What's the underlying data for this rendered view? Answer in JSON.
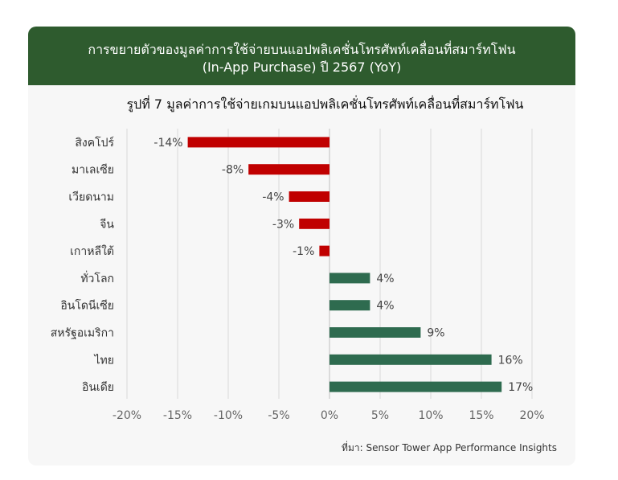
{
  "banner": {
    "line1": "การขยายตัวของมูลค่าการใช้จ่ายบนแอปพลิเคชั่นโทรศัพท์เคลื่อนที่สมาร์ทโฟน",
    "line2": "(In-App Purchase) ปี 2567 (YoY)",
    "color": "#2e5b2e"
  },
  "source": "ที่มา: Sensor Tower App Performance Insights",
  "chart_data": {
    "type": "bar",
    "orientation": "horizontal",
    "title": "รูปที่ 7 มูลค่าการใช้จ่ายเกมบนแอปพลิเคชั่นโทรศัพท์เคลื่อนที่สมาร์ทโฟน",
    "categories": [
      "สิงคโปร์",
      "มาเลเซีย",
      "เวียดนาม",
      "จีน",
      "เกาหลีใต้",
      "ทั่วโลก",
      "อินโดนีเซีย",
      "สหรัฐอเมริกา",
      "ไทย",
      "อินเดีย"
    ],
    "values": [
      -14,
      -8,
      -4,
      -3,
      -1,
      4,
      4,
      9,
      16,
      17
    ],
    "value_labels": [
      "-14%",
      "-8%",
      "-4%",
      "-3%",
      "-1%",
      "4%",
      "4%",
      "9%",
      "16%",
      "17%"
    ],
    "xlim": [
      -20,
      20
    ],
    "xticks": [
      -20,
      -15,
      -10,
      -5,
      0,
      5,
      10,
      15,
      20
    ],
    "xtick_labels": [
      "-20%",
      "-15%",
      "-10%",
      "-5%",
      "0%",
      "5%",
      "10%",
      "15%",
      "20%"
    ],
    "grid": true,
    "colors": {
      "negative": "#c00000",
      "positive": "#2e6b4f",
      "grid": "#d9d9d9",
      "axis": "#bfbfbf"
    }
  }
}
